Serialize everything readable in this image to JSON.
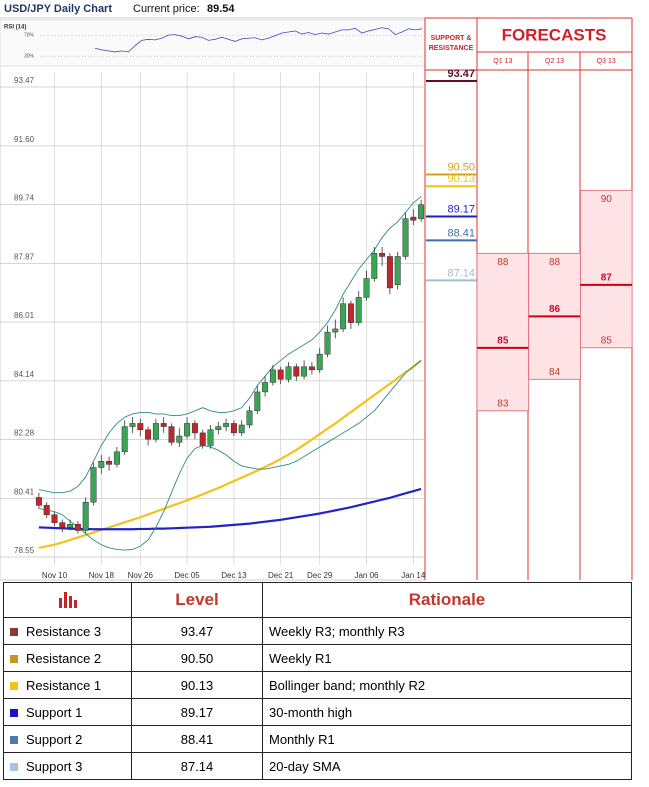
{
  "chart_data": {
    "type": "candlestick",
    "title": "USD/JPY Daily Chart",
    "current_price_label": "Current price:",
    "current_price": 89.54,
    "categories": [
      null,
      null,
      "Nov 10",
      null,
      null,
      null,
      null,
      null,
      "Nov 18",
      null,
      null,
      null,
      null,
      "Nov 26",
      null,
      null,
      null,
      null,
      null,
      "Dec 05",
      null,
      null,
      null,
      null,
      null,
      "Dec 13",
      null,
      null,
      null,
      null,
      null,
      "Dec 21",
      null,
      null,
      null,
      null,
      "Dec 29",
      null,
      null,
      null,
      null,
      null,
      "Jan 06",
      null,
      null,
      null,
      null,
      null,
      "Jan 14",
      null
    ],
    "open": [
      80.25,
      80.0,
      79.7,
      79.45,
      79.3,
      79.4,
      79.2,
      80.1,
      81.2,
      81.4,
      81.3,
      81.7,
      82.5,
      82.6,
      82.4,
      82.1,
      82.6,
      82.5,
      82.0,
      82.2,
      82.6,
      82.3,
      81.9,
      82.4,
      82.5,
      82.6,
      82.3,
      82.55,
      83.0,
      83.6,
      83.9,
      84.3,
      84.0,
      84.4,
      84.1,
      84.4,
      84.3,
      84.8,
      85.5,
      85.6,
      86.4,
      85.8,
      86.6,
      87.2,
      88.0,
      87.9,
      87.0,
      87.9,
      89.15,
      89.1
    ],
    "high": [
      80.4,
      80.1,
      79.8,
      79.55,
      79.55,
      79.5,
      80.25,
      81.35,
      81.6,
      81.55,
      81.85,
      82.7,
      82.8,
      82.75,
      82.5,
      82.75,
      82.8,
      82.6,
      82.45,
      82.8,
      82.7,
      82.4,
      82.55,
      82.65,
      82.75,
      82.7,
      82.7,
      83.15,
      83.8,
      84.1,
      84.45,
      84.4,
      84.55,
      84.5,
      84.6,
      84.55,
      85.0,
      85.7,
      85.9,
      86.6,
      86.5,
      86.8,
      87.45,
      88.2,
      88.2,
      88.0,
      88.05,
      89.3,
      89.4,
      89.7
    ],
    "low": [
      79.9,
      79.6,
      79.35,
      79.15,
      79.2,
      79.1,
      79.1,
      80.0,
      81.0,
      81.1,
      81.2,
      81.6,
      82.3,
      82.2,
      81.9,
      82.0,
      82.3,
      81.9,
      81.85,
      82.1,
      82.1,
      81.8,
      81.8,
      82.25,
      82.35,
      82.2,
      82.2,
      82.45,
      82.9,
      83.45,
      83.8,
      83.85,
      83.9,
      83.95,
      84.0,
      84.15,
      84.2,
      84.7,
      85.3,
      85.5,
      85.6,
      85.7,
      86.5,
      87.1,
      87.6,
      86.7,
      86.85,
      87.8,
      88.9,
      89.0
    ],
    "close": [
      80.0,
      79.7,
      79.45,
      79.3,
      79.4,
      79.2,
      80.1,
      81.2,
      81.4,
      81.3,
      81.7,
      82.5,
      82.6,
      82.4,
      82.1,
      82.6,
      82.5,
      82.0,
      82.2,
      82.6,
      82.3,
      81.9,
      82.4,
      82.5,
      82.6,
      82.3,
      82.55,
      83.0,
      83.6,
      83.9,
      84.3,
      84.0,
      84.4,
      84.1,
      84.4,
      84.3,
      84.8,
      85.5,
      85.6,
      86.4,
      85.8,
      86.6,
      87.2,
      88.0,
      87.9,
      86.9,
      87.9,
      89.1,
      89.05,
      89.54
    ],
    "up_color": "#3aa655",
    "down_color": "#c0262c",
    "overlays": [
      {
        "color": "#f2c318",
        "values": [
          78.65,
          78.7,
          78.75,
          78.82,
          78.9,
          78.98,
          79.06,
          79.14,
          79.22,
          79.3,
          79.38,
          79.46,
          79.54,
          79.62,
          79.71,
          79.8,
          79.89,
          79.98,
          80.07,
          80.16,
          80.25,
          80.35,
          80.45,
          80.55,
          80.66,
          80.77,
          80.88,
          80.99,
          81.1,
          81.22,
          81.34,
          81.47,
          81.61,
          81.76,
          81.92,
          82.09,
          82.26,
          82.43,
          82.6,
          82.78,
          82.96,
          83.14,
          83.32,
          83.5,
          83.68,
          83.86,
          84.04,
          84.22,
          84.4,
          84.6
        ]
      },
      {
        "color": "#2323c8",
        "values": [
          79.3,
          79.29,
          79.28,
          79.27,
          79.26,
          79.25,
          79.25,
          79.24,
          79.24,
          79.24,
          79.24,
          79.24,
          79.24,
          79.25,
          79.25,
          79.26,
          79.26,
          79.27,
          79.28,
          79.29,
          79.3,
          79.31,
          79.32,
          79.34,
          79.36,
          79.38,
          79.4,
          79.42,
          79.45,
          79.48,
          79.51,
          79.54,
          79.58,
          79.62,
          79.66,
          79.7,
          79.74,
          79.79,
          79.84,
          79.89,
          79.94,
          80.0,
          80.06,
          80.12,
          80.18,
          80.24,
          80.31,
          80.38,
          80.45,
          80.52
        ]
      },
      {
        "color": "#2e8b8b",
        "values": [
          80.5,
          80.45,
          80.4,
          80.4,
          80.45,
          80.6,
          80.9,
          81.4,
          81.9,
          82.3,
          82.6,
          82.8,
          82.9,
          82.95,
          82.95,
          82.9,
          82.9,
          82.85,
          82.85,
          82.9,
          83.0,
          83.1,
          83.0,
          82.95,
          82.95,
          83.0,
          83.1,
          83.4,
          83.8,
          84.1,
          84.4,
          84.6,
          84.8,
          84.95,
          85.1,
          85.25,
          85.5,
          85.8,
          86.2,
          86.7,
          87.1,
          87.5,
          87.8,
          88.1,
          88.5,
          88.8,
          89.0,
          89.3,
          89.6,
          89.8
        ]
      },
      {
        "color": "#2e8b8b",
        "values": [
          79.9,
          79.85,
          79.8,
          79.7,
          79.5,
          79.3,
          79.1,
          78.9,
          78.75,
          78.65,
          78.6,
          78.58,
          78.6,
          78.7,
          78.9,
          79.3,
          79.8,
          80.4,
          81.0,
          81.5,
          81.8,
          81.9,
          81.85,
          81.75,
          81.6,
          81.4,
          81.25,
          81.2,
          81.15,
          81.15,
          81.2,
          81.25,
          81.3,
          81.4,
          81.55,
          81.7,
          81.85,
          82.0,
          82.15,
          82.3,
          82.45,
          82.6,
          82.8,
          83.0,
          83.3,
          83.6,
          83.9,
          84.2,
          84.4,
          84.6
        ]
      }
    ],
    "ylim": [
      78.55,
      93.47
    ],
    "yticks": [
      93.47,
      {
        "value": 91.6,
        "label": "91.60"
      },
      89.74,
      87.87,
      86.01,
      84.14,
      82.28,
      80.41,
      78.55
    ],
    "grid": true,
    "rsi": {
      "label": "RSI (14)",
      "color": "#3b4fc4",
      "ylim": [
        15,
        95
      ],
      "yticks": [
        {
          "value": 70,
          "label": "70%"
        },
        {
          "value": 30,
          "label": "30%"
        }
      ],
      "values": [
        45,
        42,
        40,
        38,
        40,
        38,
        50,
        60,
        62,
        61,
        64,
        70,
        71,
        68,
        63,
        67,
        66,
        60,
        62,
        66,
        62,
        58,
        63,
        64,
        65,
        61,
        64,
        69,
        74,
        76,
        78,
        72,
        75,
        71,
        74,
        72,
        76,
        80,
        80,
        83,
        74,
        78,
        81,
        84,
        82,
        71,
        76,
        82,
        80,
        82
      ]
    }
  },
  "support_resistance": {
    "title": "SUPPORT & RESISTANCE",
    "levels": [
      {
        "name": "Resistance 3",
        "value": 93.47,
        "color": "#5b0f2b",
        "swatch": "#8b3a3a",
        "rationale": "Weekly R3;  monthly R3"
      },
      {
        "name": "Resistance 2",
        "value": {
          "value": 90.5,
          "label": "90.50"
        },
        "color": "#d4a017",
        "swatch": "#c8961e",
        "rationale": "Weekly R1"
      },
      {
        "name": "Resistance 1",
        "value": 90.13,
        "color": "#f0c419",
        "swatch": "#f2c318",
        "rationale": "Bollinger band; monthly R2"
      },
      {
        "name": "Support 1",
        "value": 89.17,
        "color": "#1f1fbf",
        "swatch": "#1515c8",
        "rationale": "30-month high"
      },
      {
        "name": "Support 2",
        "value": 88.41,
        "color": "#3d6fa5",
        "swatch": "#4a7ab0",
        "rationale": "Monthly R1"
      },
      {
        "name": "Support 3",
        "value": 87.14,
        "color": "#9cc0d2",
        "swatch": "#a8c4dc",
        "rationale": "20-day SMA"
      }
    ]
  },
  "forecasts": {
    "title": "FORECASTS",
    "quarters": [
      {
        "label": "Q1 13",
        "high": 88,
        "mid": 85,
        "low": 83
      },
      {
        "label": "Q2 13",
        "high": 88,
        "mid": 86,
        "low": 84
      },
      {
        "label": "Q3 13",
        "high": 90,
        "mid": 87,
        "low": 85
      }
    ]
  },
  "table": {
    "headers": [
      "Level",
      "Rationale"
    ]
  }
}
